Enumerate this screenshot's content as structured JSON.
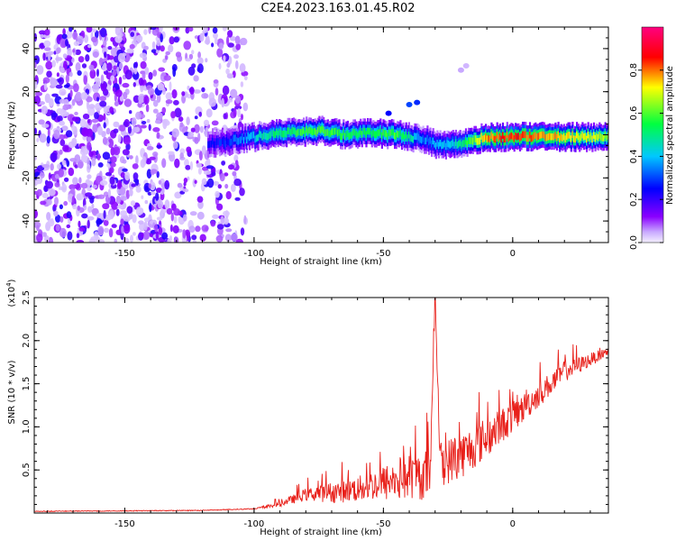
{
  "title": "C2E4.2023.163.01.45.R02",
  "chart_data": [
    {
      "type": "heatmap",
      "name": "spectrogram",
      "xlabel": "Height of straight line (km)",
      "ylabel": "Frequency (Hz)",
      "xlim": [
        -185,
        37
      ],
      "ylim": [
        -50,
        50
      ],
      "xticks": [
        -150,
        -100,
        -50,
        0
      ],
      "xtick_labels": [
        "-150",
        "-100",
        "-50",
        "0"
      ],
      "yticks": [
        -40,
        -20,
        0,
        20,
        40
      ],
      "ytick_labels": [
        "-40",
        "-20",
        "0",
        "20",
        "40"
      ],
      "colorbar": {
        "label": "Normalized spectral amplitude",
        "range": [
          0,
          1
        ],
        "ticks": [
          0.0,
          0.2,
          0.4,
          0.6,
          0.8
        ],
        "tick_labels": [
          "0.0",
          "0.2",
          "0.4",
          "0.6",
          "0.8"
        ],
        "colors": [
          "#f4f0ff",
          "#8a00ff",
          "#0000ff",
          "#00c8ff",
          "#00ff40",
          "#ffff00",
          "#ff0000",
          "#ff0080"
        ]
      },
      "ridge": {
        "description": "strong narrow band near 0 Hz from about -115 km to 37 km",
        "x": [
          -115,
          -105,
          -95,
          -85,
          -75,
          -65,
          -55,
          -45,
          -35,
          -28,
          -20,
          -10,
          0,
          10,
          20,
          37
        ],
        "freq_hz": [
          -4,
          -2,
          0,
          1,
          2,
          0,
          1,
          0,
          -2,
          -5,
          -4,
          -1,
          -1,
          -1,
          -1,
          -1
        ],
        "amplitude": [
          0.2,
          0.3,
          0.45,
          0.5,
          0.55,
          0.5,
          0.5,
          0.55,
          0.3,
          0.35,
          0.45,
          0.75,
          0.8,
          0.75,
          0.7,
          0.6
        ]
      },
      "noise_region": [
        -185,
        -115
      ]
    },
    {
      "type": "line",
      "name": "snr",
      "xlabel": "Height of straight line (km)",
      "ylabel": "SNR (10 * v/v)",
      "y_multiplier_label": "(x10",
      "y_multiplier_exp": "4",
      "y_multiplier_close": ")",
      "xlim": [
        -185,
        37
      ],
      "ylim": [
        0,
        2.5
      ],
      "xticks": [
        -150,
        -100,
        -50,
        0
      ],
      "xtick_labels": [
        "-150",
        "-100",
        "-50",
        "0"
      ],
      "yticks": [
        0.5,
        1.0,
        1.5,
        2.0,
        2.5
      ],
      "ytick_labels": [
        "0.5",
        "1.0",
        "1.5",
        "2.0",
        "2.5"
      ],
      "color": "#e8201a",
      "envelope_x": [
        -185,
        -120,
        -100,
        -90,
        -80,
        -70,
        -60,
        -50,
        -40,
        -32,
        -30,
        -28,
        -20,
        -10,
        0,
        10,
        20,
        37
      ],
      "envelope_y": [
        0.02,
        0.03,
        0.05,
        0.12,
        0.25,
        0.3,
        0.35,
        0.45,
        0.55,
        0.6,
        2.5,
        0.7,
        0.8,
        1.0,
        1.2,
        1.45,
        1.7,
        1.9
      ],
      "spread": [
        0.005,
        0.008,
        0.02,
        0.05,
        0.12,
        0.2,
        0.25,
        0.35,
        0.45,
        0.5,
        0.0,
        0.45,
        0.45,
        0.4,
        0.3,
        0.25,
        0.2,
        0.08
      ]
    }
  ]
}
